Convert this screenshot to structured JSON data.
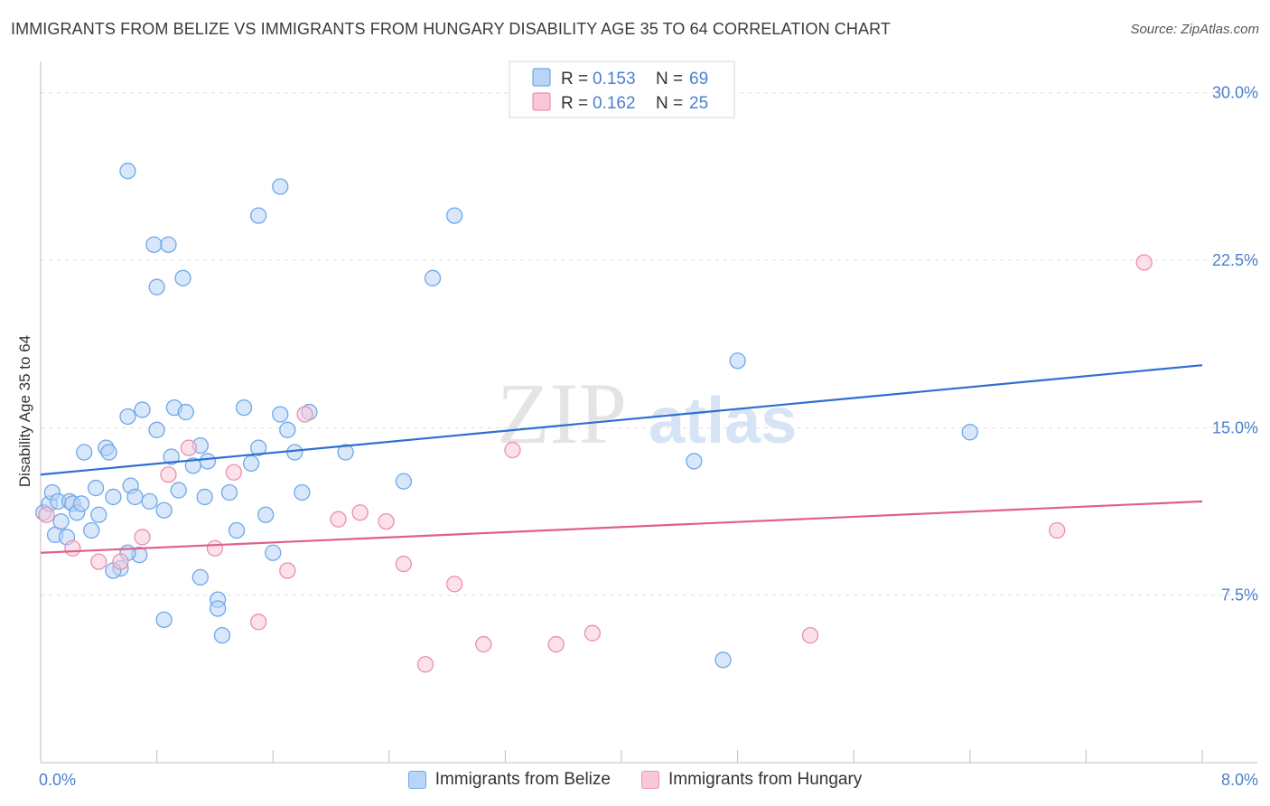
{
  "header": {
    "title": "IMMIGRANTS FROM BELIZE VS IMMIGRANTS FROM HUNGARY DISABILITY AGE 35 TO 64 CORRELATION CHART",
    "source": "Source: ZipAtlas.com"
  },
  "watermark": {
    "zip": "ZIP",
    "atlas": "atlas"
  },
  "legend": {
    "rows": [
      {
        "r_label": "R = ",
        "r_value": "0.153",
        "n_label": "N = ",
        "n_value": "69",
        "color": "#6fa8ea",
        "fill": "#b9d4f5"
      },
      {
        "r_label": "R = ",
        "r_value": "0.162",
        "n_label": "N = ",
        "n_value": "25",
        "color": "#ec8fae",
        "fill": "#f8c8d8"
      }
    ]
  },
  "bottom_legend": {
    "items": [
      {
        "label": "Immigrants from Belize",
        "color": "#6fa8ea",
        "fill": "#b9d4f5"
      },
      {
        "label": "Immigrants from Hungary",
        "color": "#ec8fae",
        "fill": "#f8c8d8"
      }
    ]
  },
  "chart_data": {
    "type": "scatter",
    "title": "IMMIGRANTS FROM BELIZE VS IMMIGRANTS FROM HUNGARY DISABILITY AGE 35 TO 64 CORRELATION CHART",
    "xlabel": "",
    "ylabel": "Disability Age 35 to 64",
    "xlim": [
      0,
      8
    ],
    "ylim": [
      0,
      31
    ],
    "x_tick_labels": [
      "0.0%",
      "8.0%"
    ],
    "y_ticks": [
      7.5,
      15.0,
      22.5,
      30.0
    ],
    "y_tick_labels": [
      "7.5%",
      "15.0%",
      "22.5%",
      "30.0%"
    ],
    "grid": true,
    "legend_position": "top-center",
    "series": [
      {
        "name": "Immigrants from Belize",
        "color": "#4a7fd0",
        "marker_fill": "#b9d4f5",
        "marker_edge": "#6fa8ea",
        "trend": {
          "x": [
            0,
            8
          ],
          "y": [
            12.9,
            17.8
          ],
          "color": "#2f6fd0"
        },
        "points": [
          [
            0.02,
            11.2
          ],
          [
            0.06,
            11.6
          ],
          [
            0.08,
            12.1
          ],
          [
            0.1,
            10.2
          ],
          [
            0.12,
            11.7
          ],
          [
            0.14,
            10.8
          ],
          [
            0.18,
            10.1
          ],
          [
            0.2,
            11.7
          ],
          [
            0.22,
            11.6
          ],
          [
            0.25,
            11.2
          ],
          [
            0.28,
            11.6
          ],
          [
            0.3,
            13.9
          ],
          [
            0.35,
            10.4
          ],
          [
            0.38,
            12.3
          ],
          [
            0.4,
            11.1
          ],
          [
            0.45,
            14.1
          ],
          [
            0.47,
            13.9
          ],
          [
            0.5,
            11.9
          ],
          [
            0.55,
            8.7
          ],
          [
            0.6,
            15.5
          ],
          [
            0.62,
            12.4
          ],
          [
            0.65,
            11.9
          ],
          [
            0.68,
            9.3
          ],
          [
            0.7,
            15.8
          ],
          [
            0.75,
            11.7
          ],
          [
            0.8,
            14.9
          ],
          [
            0.85,
            11.3
          ],
          [
            0.9,
            13.7
          ],
          [
            0.92,
            15.9
          ],
          [
            0.95,
            12.2
          ],
          [
            1.0,
            15.7
          ],
          [
            1.05,
            13.3
          ],
          [
            1.1,
            14.2
          ],
          [
            1.13,
            11.9
          ],
          [
            1.15,
            13.5
          ],
          [
            1.22,
            7.3
          ],
          [
            1.25,
            5.7
          ],
          [
            1.3,
            12.1
          ],
          [
            1.35,
            10.4
          ],
          [
            1.4,
            15.9
          ],
          [
            1.45,
            13.4
          ],
          [
            1.5,
            14.1
          ],
          [
            1.55,
            11.1
          ],
          [
            1.6,
            9.4
          ],
          [
            1.65,
            15.6
          ],
          [
            1.7,
            14.9
          ],
          [
            1.75,
            13.9
          ],
          [
            1.8,
            12.1
          ],
          [
            1.85,
            15.7
          ],
          [
            2.1,
            13.9
          ],
          [
            2.5,
            12.6
          ],
          [
            0.6,
            26.5
          ],
          [
            0.78,
            23.2
          ],
          [
            0.88,
            23.2
          ],
          [
            0.8,
            21.3
          ],
          [
            0.98,
            21.7
          ],
          [
            1.5,
            24.5
          ],
          [
            1.65,
            25.8
          ],
          [
            2.85,
            24.5
          ],
          [
            2.7,
            21.7
          ],
          [
            0.5,
            8.6
          ],
          [
            0.6,
            9.4
          ],
          [
            1.22,
            6.9
          ],
          [
            1.1,
            8.3
          ],
          [
            0.85,
            6.4
          ],
          [
            4.5,
            13.5
          ],
          [
            4.8,
            18.0
          ],
          [
            4.7,
            4.6
          ],
          [
            6.4,
            14.8
          ]
        ]
      },
      {
        "name": "Immigrants from Hungary",
        "color": "#e0608a",
        "marker_fill": "#f8c8d8",
        "marker_edge": "#ec8fae",
        "trend": {
          "x": [
            0,
            8
          ],
          "y": [
            9.4,
            11.7
          ],
          "color": "#e0608a"
        },
        "points": [
          [
            0.04,
            11.1
          ],
          [
            0.22,
            9.6
          ],
          [
            0.4,
            9.0
          ],
          [
            0.55,
            9.0
          ],
          [
            0.7,
            10.1
          ],
          [
            0.88,
            12.9
          ],
          [
            1.02,
            14.1
          ],
          [
            1.2,
            9.6
          ],
          [
            1.33,
            13.0
          ],
          [
            1.5,
            6.3
          ],
          [
            1.7,
            8.6
          ],
          [
            1.82,
            15.6
          ],
          [
            2.05,
            10.9
          ],
          [
            2.2,
            11.2
          ],
          [
            2.38,
            10.8
          ],
          [
            2.5,
            8.9
          ],
          [
            2.65,
            4.4
          ],
          [
            2.85,
            8.0
          ],
          [
            3.05,
            5.3
          ],
          [
            3.25,
            14.0
          ],
          [
            3.55,
            5.3
          ],
          [
            3.8,
            5.8
          ],
          [
            5.3,
            5.7
          ],
          [
            7.0,
            10.4
          ],
          [
            7.6,
            22.4
          ]
        ]
      }
    ]
  }
}
